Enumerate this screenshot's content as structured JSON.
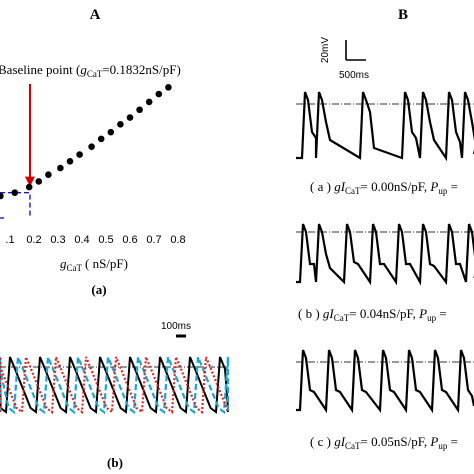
{
  "panels": {
    "left_title": "A",
    "right_title": "B"
  },
  "chart_data": [
    {
      "type": "scatter",
      "label": "(a)",
      "annotation": "Baseline point (gCaT=0.1832nS/pF)",
      "annotation_parts": {
        "pre": "Baseline point (",
        "g": "g",
        "sub": "CaT",
        "post": "=0.1832nS/pF)"
      },
      "xlabel_parts": {
        "g": "g",
        "sub": "CaT",
        "post": "( nS/pF)"
      },
      "xlim": [
        0.0,
        0.8
      ],
      "x_ticks": [
        ".1",
        "0.2",
        "0.3",
        "0.4",
        "0.5",
        "0.6",
        "0.7",
        "0.8"
      ],
      "x_tick_values": [
        0.1,
        0.2,
        0.3,
        0.4,
        0.5,
        0.6,
        0.7,
        0.8
      ],
      "series": [
        {
          "x": [
            0.02,
            0.06,
            0.12,
            0.18,
            0.22,
            0.26,
            0.31,
            0.35,
            0.39,
            0.44,
            0.48,
            0.52,
            0.56,
            0.6,
            0.64,
            0.68,
            0.72,
            0.76
          ],
          "y": [
            0.0,
            0.0,
            0.03,
            0.08,
            0.13,
            0.19,
            0.25,
            0.31,
            0.37,
            0.44,
            0.51,
            0.57,
            0.64,
            0.7,
            0.77,
            0.84,
            0.91,
            0.97
          ],
          "color": "#000000"
        }
      ],
      "baseline_x": 0.1832,
      "colors": {
        "arrow": "#cc0000",
        "box": "#1c1ccf"
      }
    },
    {
      "type": "line",
      "label": "(b)",
      "scalebar": "100ms",
      "series": [
        {
          "color": "#000000",
          "style": "solid"
        },
        {
          "color": "#1aa6d6",
          "style": "dashed"
        },
        {
          "color": "#d42a2a",
          "style": "dotted"
        }
      ]
    },
    {
      "type": "line",
      "scalebar_v": "20mV",
      "scalebar_h": "500ms",
      "traces": [
        {
          "caption": {
            "pre": "( a ) ",
            "g": "gI",
            "sub": "CaT",
            "mid": "= 0.00nS/pF, ",
            "p": "P",
            "psub": "up",
            "post": " ="
          }
        },
        {
          "caption": {
            "pre": "( b ) ",
            "g": "gI",
            "sub": "CaT",
            "mid": "= 0.04nS/pF, ",
            "p": "P",
            "psub": "up",
            "post": " ="
          }
        },
        {
          "caption": {
            "pre": "( c ) ",
            "g": "gI",
            "sub": "CaT",
            "mid": "= 0.05nS/pF, ",
            "p": "P",
            "psub": "up",
            "post": " ="
          }
        }
      ]
    }
  ]
}
